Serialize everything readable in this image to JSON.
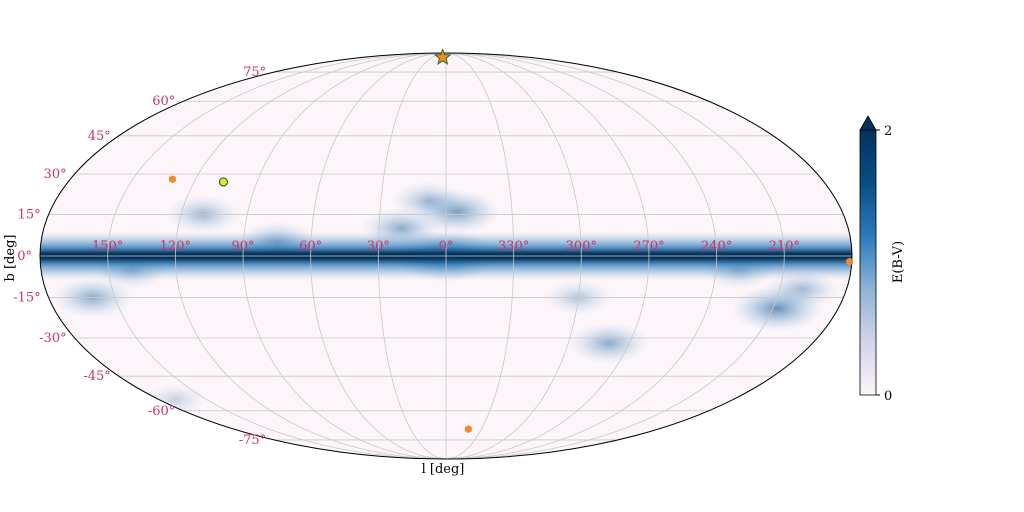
{
  "chart_data": {
    "type": "heatmap",
    "projection": "mollweide",
    "title": "",
    "xlabel": "l [deg]",
    "ylabel": "b [deg]",
    "colorbar": {
      "label": "E(B-V)",
      "min": 0,
      "max": 2,
      "tick_labels": [
        "0",
        "2"
      ],
      "extend": "max",
      "colormap": [
        "#fcf5f9",
        "#d4d4e8",
        "#8fb3d6",
        "#2b7bba",
        "#0a4d85",
        "#03325c"
      ]
    },
    "longitude_ticks": [
      150,
      120,
      90,
      60,
      30,
      0,
      330,
      300,
      270,
      240,
      210
    ],
    "longitude_tick_labels": [
      "150°",
      "120°",
      "90°",
      "60°",
      "30°",
      "0°",
      "330°",
      "300°",
      "270°",
      "240°",
      "210°"
    ],
    "latitude_ticks": [
      75,
      60,
      45,
      30,
      15,
      0,
      -15,
      -30,
      -45,
      -60,
      -75
    ],
    "latitude_tick_labels": [
      "75°",
      "60°",
      "45°",
      "30°",
      "15°",
      "0°",
      "-15°",
      "-30°",
      "-45°",
      "-60°",
      "-75°"
    ],
    "tick_label_color": "#cc3366",
    "grid": true,
    "grid_color": "#c8c8c8",
    "markers": [
      {
        "shape": "star",
        "l": 7,
        "b": 85,
        "color": "#f08a2c",
        "edge": "#2e6b1e"
      },
      {
        "shape": "circle",
        "l": 106,
        "b": 27,
        "color": "#e2e63a",
        "edge": "#2e6b1e"
      },
      {
        "shape": "hexagon",
        "l": 131,
        "b": 28,
        "color": "#f08a2c"
      },
      {
        "shape": "hexagon",
        "l": 341,
        "b": -69,
        "color": "#f08a2c"
      },
      {
        "shape": "hexagon",
        "l": 181,
        "b": -2,
        "color": "#f08a2c"
      }
    ],
    "clouds": [
      {
        "l": 0,
        "b": 0,
        "intensity": 1.0
      },
      {
        "l": 355,
        "b": 16,
        "intensity": 0.7
      },
      {
        "l": 8,
        "b": 20,
        "intensity": 0.5
      },
      {
        "l": 20,
        "b": 10,
        "intensity": 0.6
      },
      {
        "l": 75,
        "b": 5,
        "intensity": 0.6
      },
      {
        "l": 110,
        "b": 15,
        "intensity": 0.5
      },
      {
        "l": 140,
        "b": -5,
        "intensity": 0.5
      },
      {
        "l": 160,
        "b": -15,
        "intensity": 0.6
      },
      {
        "l": 200,
        "b": -12,
        "intensity": 0.5
      },
      {
        "l": 208,
        "b": -19,
        "intensity": 0.8
      },
      {
        "l": 230,
        "b": -5,
        "intensity": 0.5
      },
      {
        "l": 280,
        "b": -32,
        "intensity": 0.6
      },
      {
        "l": 300,
        "b": -15,
        "intensity": 0.4
      },
      {
        "l": 170,
        "b": -55,
        "intensity": 0.3
      }
    ]
  }
}
